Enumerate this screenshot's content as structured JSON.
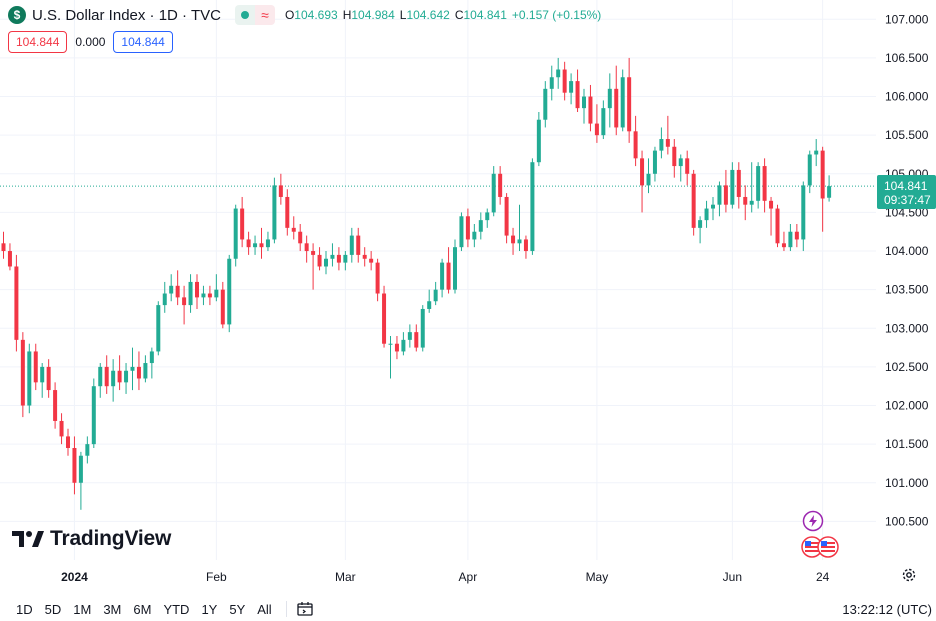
{
  "legend": {
    "symbol_icon": "$",
    "title": "U.S. Dollar Index · 1D · TVC",
    "open_label": "O",
    "open": "104.693",
    "high_label": "H",
    "high": "104.984",
    "low_label": "L",
    "low": "104.642",
    "close_label": "C",
    "close": "104.841",
    "change": "+0.157 (+0.15%)",
    "wave_symbol": "≈"
  },
  "indicator_boxes": {
    "left_value": "104.844",
    "middle_value": "0.000",
    "right_value": "104.844"
  },
  "price_label": {
    "value": "104.841",
    "countdown": "09:37:47"
  },
  "brand": {
    "logo_mark": "17",
    "name": "TradingView"
  },
  "toolbar": {
    "timeframes": [
      "1D",
      "5D",
      "1M",
      "3M",
      "6M",
      "YTD",
      "1Y",
      "5Y",
      "All"
    ],
    "clock": "13:22:12 (UTC)"
  },
  "colors": {
    "up": "#22ab94",
    "down": "#f23645",
    "grid": "#f0f3fa",
    "axis_text": "#131722",
    "price_line": "#22ab94"
  },
  "icons": [
    "dollar-icon",
    "settings-gear-icon",
    "date-range-icon",
    "lightning-icon",
    "us-flag-icon"
  ],
  "chart_data": {
    "type": "candlestick",
    "title": "U.S. Dollar Index · 1D · TVC",
    "ylim": [
      100.0,
      107.25
    ],
    "grid": true,
    "y_ticks": [
      100.5,
      101.0,
      101.5,
      102.0,
      102.5,
      103.0,
      103.5,
      104.0,
      104.5,
      105.0,
      105.5,
      106.0,
      106.5,
      107.0
    ],
    "y_tick_labels": [
      "100.500",
      "101.000",
      "101.500",
      "102.000",
      "102.500",
      "103.000",
      "103.500",
      "104.000",
      "104.500",
      "105.000",
      "105.500",
      "106.000",
      "106.500",
      "107.000"
    ],
    "x_tick_labels": [
      {
        "label": "2024",
        "index": 11,
        "bold": true
      },
      {
        "label": "Feb",
        "index": 33,
        "bold": false
      },
      {
        "label": "Mar",
        "index": 53,
        "bold": false
      },
      {
        "label": "Apr",
        "index": 72,
        "bold": false
      },
      {
        "label": "May",
        "index": 92,
        "bold": false
      },
      {
        "label": "Jun",
        "index": 113,
        "bold": false
      },
      {
        "label": "24",
        "index": 127,
        "bold": false
      }
    ],
    "candles": [
      [
        104.1,
        104.25,
        103.9,
        104.0
      ],
      [
        104.0,
        104.1,
        103.75,
        103.8
      ],
      [
        103.8,
        103.95,
        102.7,
        102.85
      ],
      [
        102.85,
        102.95,
        101.85,
        102.0
      ],
      [
        102.0,
        102.8,
        101.9,
        102.7
      ],
      [
        102.7,
        102.8,
        102.2,
        102.3
      ],
      [
        102.3,
        102.55,
        102.1,
        102.5
      ],
      [
        102.5,
        102.6,
        102.1,
        102.2
      ],
      [
        102.2,
        102.3,
        101.7,
        101.8
      ],
      [
        101.8,
        101.9,
        101.5,
        101.6
      ],
      [
        101.6,
        101.7,
        101.35,
        101.45
      ],
      [
        101.45,
        101.6,
        100.85,
        101.0
      ],
      [
        101.0,
        101.4,
        100.65,
        101.35
      ],
      [
        101.35,
        101.6,
        101.25,
        101.5
      ],
      [
        101.5,
        102.35,
        101.45,
        102.25
      ],
      [
        102.25,
        102.55,
        102.1,
        102.5
      ],
      [
        102.5,
        102.65,
        102.15,
        102.25
      ],
      [
        102.25,
        102.6,
        102.05,
        102.45
      ],
      [
        102.45,
        102.65,
        102.2,
        102.3
      ],
      [
        102.3,
        102.55,
        102.15,
        102.45
      ],
      [
        102.45,
        102.75,
        102.2,
        102.5
      ],
      [
        102.5,
        102.7,
        102.2,
        102.35
      ],
      [
        102.35,
        102.65,
        102.3,
        102.55
      ],
      [
        102.55,
        102.75,
        102.35,
        102.7
      ],
      [
        102.7,
        103.35,
        102.65,
        103.3
      ],
      [
        103.3,
        103.6,
        103.2,
        103.45
      ],
      [
        103.45,
        103.7,
        103.35,
        103.55
      ],
      [
        103.55,
        103.75,
        103.3,
        103.4
      ],
      [
        103.4,
        103.55,
        103.05,
        103.3
      ],
      [
        103.3,
        103.7,
        103.2,
        103.6
      ],
      [
        103.6,
        103.7,
        103.25,
        103.4
      ],
      [
        103.4,
        103.55,
        103.3,
        103.45
      ],
      [
        103.45,
        103.55,
        103.3,
        103.4
      ],
      [
        103.4,
        103.7,
        103.35,
        103.5
      ],
      [
        103.5,
        103.6,
        103.0,
        103.05
      ],
      [
        103.05,
        103.95,
        102.95,
        103.9
      ],
      [
        103.9,
        104.6,
        103.8,
        104.55
      ],
      [
        104.55,
        104.7,
        104.05,
        104.15
      ],
      [
        104.15,
        104.25,
        103.95,
        104.05
      ],
      [
        104.05,
        104.2,
        103.95,
        104.1
      ],
      [
        104.1,
        104.3,
        103.9,
        104.05
      ],
      [
        104.05,
        104.25,
        104.0,
        104.15
      ],
      [
        104.15,
        104.95,
        104.1,
        104.85
      ],
      [
        104.85,
        105.0,
        104.6,
        104.7
      ],
      [
        104.7,
        104.8,
        104.2,
        104.3
      ],
      [
        104.3,
        104.45,
        104.15,
        104.25
      ],
      [
        104.25,
        104.35,
        104.0,
        104.1
      ],
      [
        104.1,
        104.2,
        103.85,
        104.0
      ],
      [
        104.0,
        104.1,
        103.5,
        103.95
      ],
      [
        103.95,
        104.05,
        103.75,
        103.8
      ],
      [
        103.8,
        104.0,
        103.7,
        103.9
      ],
      [
        103.9,
        104.1,
        103.8,
        103.95
      ],
      [
        103.95,
        104.05,
        103.75,
        103.85
      ],
      [
        103.85,
        104.0,
        103.75,
        103.95
      ],
      [
        103.95,
        104.3,
        103.85,
        104.2
      ],
      [
        104.2,
        104.3,
        103.85,
        103.95
      ],
      [
        103.95,
        104.05,
        103.8,
        103.9
      ],
      [
        103.9,
        104.0,
        103.75,
        103.85
      ],
      [
        103.85,
        103.9,
        103.35,
        103.45
      ],
      [
        103.45,
        103.55,
        102.75,
        102.8
      ],
      [
        102.8,
        102.9,
        102.35,
        102.8
      ],
      [
        102.8,
        102.9,
        102.6,
        102.7
      ],
      [
        102.7,
        102.95,
        102.65,
        102.85
      ],
      [
        102.85,
        103.05,
        102.75,
        102.95
      ],
      [
        102.95,
        103.05,
        102.7,
        102.75
      ],
      [
        102.75,
        103.3,
        102.7,
        103.25
      ],
      [
        103.25,
        103.5,
        103.2,
        103.35
      ],
      [
        103.35,
        103.6,
        103.3,
        103.5
      ],
      [
        103.5,
        103.9,
        103.4,
        103.85
      ],
      [
        103.85,
        104.05,
        103.45,
        103.5
      ],
      [
        103.5,
        104.15,
        103.45,
        104.05
      ],
      [
        104.05,
        104.5,
        104.0,
        104.45
      ],
      [
        104.45,
        104.55,
        104.05,
        104.15
      ],
      [
        104.15,
        104.35,
        104.05,
        104.25
      ],
      [
        104.25,
        104.5,
        104.15,
        104.4
      ],
      [
        104.4,
        104.55,
        104.3,
        104.5
      ],
      [
        104.5,
        105.1,
        104.45,
        105.0
      ],
      [
        105.0,
        105.1,
        104.6,
        104.7
      ],
      [
        104.7,
        104.75,
        104.1,
        104.2
      ],
      [
        104.2,
        104.3,
        103.95,
        104.1
      ],
      [
        104.1,
        104.6,
        104.0,
        104.15
      ],
      [
        104.15,
        104.2,
        103.9,
        104.0
      ],
      [
        104.0,
        105.2,
        103.95,
        105.15
      ],
      [
        105.15,
        105.8,
        105.1,
        105.7
      ],
      [
        105.7,
        106.2,
        105.6,
        106.1
      ],
      [
        106.1,
        106.4,
        105.95,
        106.25
      ],
      [
        106.25,
        106.5,
        106.1,
        106.35
      ],
      [
        106.35,
        106.45,
        105.95,
        106.05
      ],
      [
        106.05,
        106.3,
        105.9,
        106.2
      ],
      [
        106.2,
        106.35,
        105.8,
        105.85
      ],
      [
        105.85,
        106.1,
        105.65,
        106.0
      ],
      [
        106.0,
        106.15,
        105.55,
        105.65
      ],
      [
        105.65,
        105.9,
        105.4,
        105.5
      ],
      [
        105.5,
        105.95,
        105.45,
        105.85
      ],
      [
        105.85,
        106.3,
        105.6,
        106.1
      ],
      [
        106.1,
        106.4,
        105.5,
        105.6
      ],
      [
        105.6,
        106.35,
        105.55,
        106.25
      ],
      [
        106.25,
        106.5,
        105.4,
        105.55
      ],
      [
        105.55,
        105.75,
        105.1,
        105.2
      ],
      [
        105.2,
        105.3,
        104.5,
        104.85
      ],
      [
        104.85,
        105.2,
        104.75,
        105.0
      ],
      [
        105.0,
        105.35,
        104.9,
        105.3
      ],
      [
        105.3,
        105.6,
        105.2,
        105.45
      ],
      [
        105.45,
        105.75,
        105.25,
        105.35
      ],
      [
        105.35,
        105.45,
        104.95,
        105.1
      ],
      [
        105.1,
        105.25,
        104.9,
        105.2
      ],
      [
        105.2,
        105.3,
        104.85,
        105.0
      ],
      [
        105.0,
        105.05,
        104.2,
        104.3
      ],
      [
        104.3,
        104.45,
        104.1,
        104.4
      ],
      [
        104.4,
        104.65,
        104.3,
        104.55
      ],
      [
        104.55,
        104.7,
        104.4,
        104.6
      ],
      [
        104.6,
        104.9,
        104.45,
        104.85
      ],
      [
        104.85,
        105.05,
        104.5,
        104.6
      ],
      [
        104.6,
        105.15,
        104.55,
        105.05
      ],
      [
        105.05,
        105.15,
        104.55,
        104.7
      ],
      [
        104.7,
        104.85,
        104.4,
        104.6
      ],
      [
        104.6,
        105.15,
        104.5,
        104.65
      ],
      [
        104.65,
        105.15,
        104.55,
        105.1
      ],
      [
        105.1,
        105.2,
        104.5,
        104.65
      ],
      [
        104.65,
        104.7,
        104.2,
        104.55
      ],
      [
        104.55,
        104.6,
        104.05,
        104.1
      ],
      [
        104.1,
        104.25,
        104.0,
        104.05
      ],
      [
        104.05,
        104.35,
        104.0,
        104.25
      ],
      [
        104.25,
        104.35,
        104.05,
        104.15
      ],
      [
        104.15,
        104.9,
        104.0,
        104.85
      ],
      [
        104.85,
        105.3,
        104.75,
        105.25
      ],
      [
        105.25,
        105.45,
        105.1,
        105.3
      ],
      [
        105.3,
        105.35,
        104.25,
        104.68
      ],
      [
        104.69,
        104.98,
        104.64,
        104.84
      ]
    ]
  }
}
